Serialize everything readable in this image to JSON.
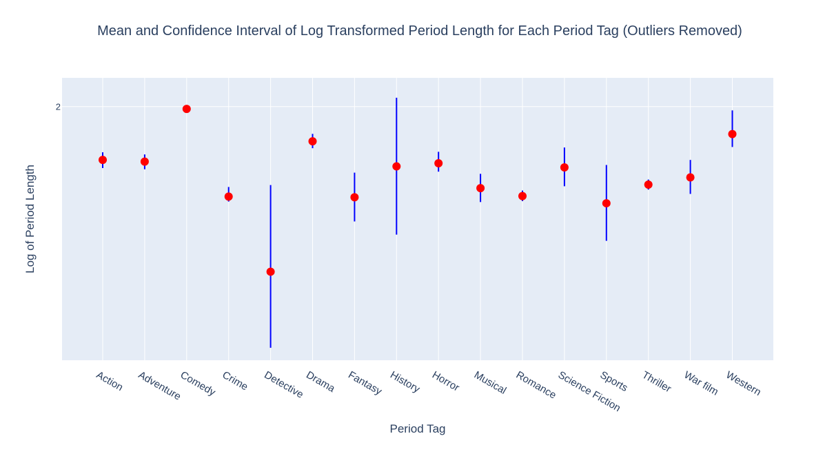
{
  "chart_data": {
    "type": "scatter",
    "title": "Mean and Confidence Interval of Log Transformed Period Length for Each Period Tag (Outliers Removed)",
    "xlabel": "Period Tag",
    "ylabel": "Log of Period Length",
    "categories": [
      "Action",
      "Adventure",
      "Comedy",
      "Crime",
      "Detective",
      "Drama",
      "Fantasy",
      "History",
      "Horror",
      "Musical",
      "Romance",
      "Science Fiction",
      "Sports",
      "Thriller",
      "War film",
      "Western"
    ],
    "mean": [
      1.777,
      1.77,
      1.99,
      1.624,
      1.31,
      1.855,
      1.621,
      1.75,
      1.763,
      1.659,
      1.626,
      1.746,
      1.596,
      1.674,
      1.704,
      1.885
    ],
    "ci_lower": [
      1.743,
      1.738,
      1.983,
      1.603,
      0.992,
      1.826,
      1.52,
      1.465,
      1.728,
      1.601,
      1.605,
      1.667,
      1.439,
      1.653,
      1.635,
      1.831
    ],
    "ci_upper": [
      1.809,
      1.8,
      1.997,
      1.664,
      1.672,
      1.886,
      1.724,
      2.037,
      1.811,
      1.719,
      1.649,
      1.829,
      1.756,
      1.695,
      1.777,
      1.984
    ],
    "ylim": [
      0.94,
      2.12
    ],
    "yticks": [
      2
    ],
    "ytick_labels": [
      "2"
    ],
    "grid": true,
    "marker_color": "#ff0000",
    "errorbar_color": "#0000ff",
    "plot_bg": "#e5ecf6"
  }
}
